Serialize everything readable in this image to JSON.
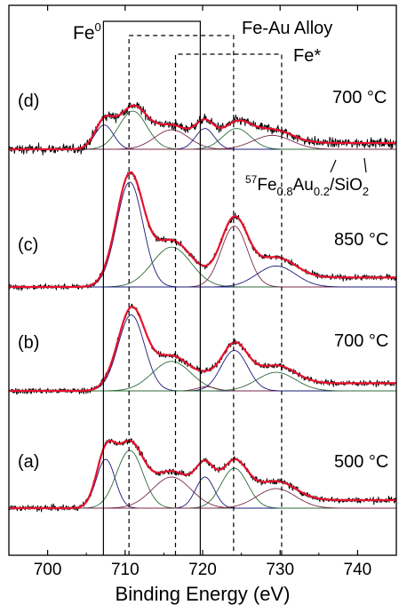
{
  "chart_data": {
    "type": "line",
    "xlabel": "Binding Energy (eV)",
    "ylabel": "",
    "xlim": [
      695,
      745
    ],
    "x_ticks": [
      700,
      710,
      720,
      730,
      740
    ],
    "x_tick_labels": [
      "700",
      "710",
      "720",
      "730",
      "740"
    ],
    "colors": {
      "raw": "#000000",
      "fit": "#e8112d",
      "component_fe0": "#1a1a7a",
      "component_alloy": "#2e6b3a",
      "component_fe_star": "#7a2a4a",
      "baseline": "#7a5a7a"
    },
    "reference_lines": [
      {
        "label": "Fe",
        "superscript": "0",
        "x": [
          707.2,
          719.7
        ],
        "style": "solid"
      },
      {
        "label": "Fe-Au Alloy",
        "superscript": "",
        "x": [
          710.5,
          724.0
        ],
        "style": "dashed"
      },
      {
        "label": "Fe*",
        "superscript": "",
        "x": [
          716.5,
          730.2
        ],
        "style": "dashed"
      }
    ],
    "sample_label": {
      "iso": "57",
      "a": "Fe",
      "asub": "0.8",
      "b": "Au",
      "bsub": "0.2",
      "c": "/SiO",
      "csub": "2"
    },
    "series": [
      {
        "name": "(d)",
        "temperature": "700 °C",
        "edge": 706.0,
        "noise": 0.9,
        "components": [
          {
            "pos": 707.3,
            "amp": 0.35,
            "w": 1.2
          },
          {
            "pos": 711.0,
            "amp": 0.55,
            "w": 1.8
          },
          {
            "pos": 716.0,
            "amp": 0.28,
            "w": 2.2
          },
          {
            "pos": 720.3,
            "amp": 0.3,
            "w": 1.2
          },
          {
            "pos": 724.4,
            "amp": 0.3,
            "w": 1.8
          },
          {
            "pos": 729.0,
            "amp": 0.2,
            "w": 2.5
          }
        ]
      },
      {
        "name": "(c)",
        "temperature": "850 °C",
        "edge": 707.0,
        "noise": 0.35,
        "components": [
          {
            "pos": 710.6,
            "amp": 1.0,
            "w": 1.7
          },
          {
            "pos": 716.0,
            "amp": 0.38,
            "w": 2.5
          },
          {
            "pos": 724.1,
            "amp": 0.58,
            "w": 1.7
          },
          {
            "pos": 729.5,
            "amp": 0.2,
            "w": 2.5
          }
        ]
      },
      {
        "name": "(b)",
        "temperature": "700 °C",
        "edge": 707.0,
        "noise": 0.45,
        "components": [
          {
            "pos": 710.8,
            "amp": 0.9,
            "w": 1.7
          },
          {
            "pos": 716.0,
            "amp": 0.35,
            "w": 2.5
          },
          {
            "pos": 720.5,
            "amp": 0.05,
            "w": 1.2
          },
          {
            "pos": 724.1,
            "amp": 0.48,
            "w": 1.7
          },
          {
            "pos": 729.5,
            "amp": 0.22,
            "w": 2.5
          }
        ]
      },
      {
        "name": "(a)",
        "temperature": "500 °C",
        "edge": 706.0,
        "noise": 0.45,
        "components": [
          {
            "pos": 707.5,
            "amp": 0.55,
            "w": 1.2
          },
          {
            "pos": 710.6,
            "amp": 0.65,
            "w": 1.7
          },
          {
            "pos": 716.0,
            "amp": 0.35,
            "w": 2.5
          },
          {
            "pos": 720.3,
            "amp": 0.35,
            "w": 1.2
          },
          {
            "pos": 724.1,
            "amp": 0.45,
            "w": 1.7
          },
          {
            "pos": 729.5,
            "amp": 0.22,
            "w": 2.5
          }
        ]
      }
    ]
  }
}
